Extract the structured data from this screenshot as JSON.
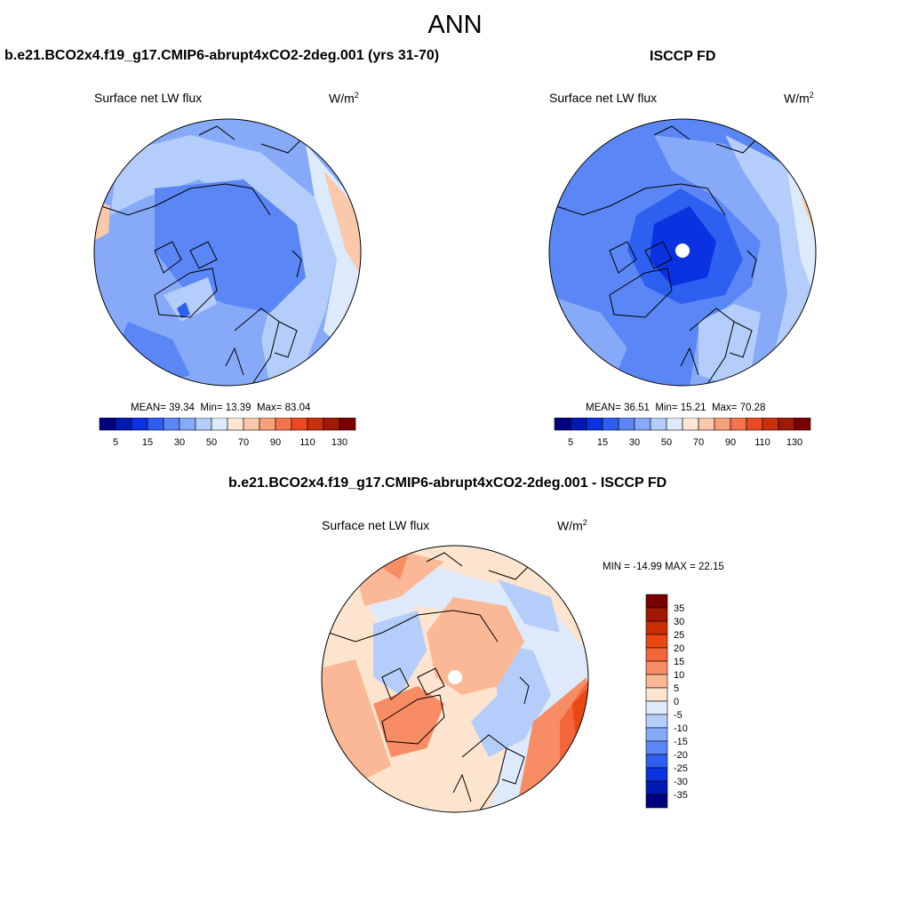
{
  "figure": {
    "title": "ANN",
    "panels": [
      {
        "id": "model",
        "title": "b.e21.BCO2x4.f19_g17.CMIP6-abrupt4xCO2-2deg.001 (yrs 31-70)",
        "variable": "Surface net LW flux",
        "units": "W/m",
        "units_sup": "2",
        "stats": {
          "mean_label": "MEAN=",
          "mean": "39.34",
          "min_label": "Min=",
          "min": "13.39",
          "max_label": "Max=",
          "max": "83.04"
        },
        "colorbar_labels": [
          "5",
          "15",
          "30",
          "50",
          "70",
          "90",
          "110",
          "130"
        ]
      },
      {
        "id": "obs",
        "title": "ISCCP FD",
        "variable": "Surface net LW flux",
        "units": "W/m",
        "units_sup": "2",
        "stats": {
          "mean_label": "MEAN=",
          "mean": "36.51",
          "min_label": "Min=",
          "min": "15.21",
          "max_label": "Max=",
          "max": "70.28"
        },
        "colorbar_labels": [
          "5",
          "15",
          "30",
          "50",
          "70",
          "90",
          "110",
          "130"
        ]
      },
      {
        "id": "diff",
        "title": "b.e21.BCO2x4.f19_g17.CMIP6-abrupt4xCO2-2deg.001 - ISCCP FD",
        "variable": "Surface net LW flux",
        "units": "W/m",
        "units_sup": "2",
        "stats_text": "MIN = -14.99 MAX =  22.15",
        "colorbar_labels": [
          "35",
          "30",
          "25",
          "20",
          "15",
          "10",
          "5",
          "0",
          "-5",
          "-10",
          "-15",
          "-20",
          "-25",
          "-30",
          "-35"
        ]
      }
    ],
    "colors": {
      "abs_scale": [
        "#00007f",
        "#0019b3",
        "#0a32e1",
        "#2d5ff0",
        "#5a87f5",
        "#87aaf8",
        "#b4cdfa",
        "#dceafc",
        "#fde6d6",
        "#fac8aa",
        "#f7a07a",
        "#f3734a",
        "#ea4a1e",
        "#c8300a",
        "#9e1a05",
        "#7a0000"
      ],
      "diff_scale": [
        "#7a0000",
        "#a21803",
        "#c82e00",
        "#ea4812",
        "#f5653a",
        "#f88c64",
        "#fab896",
        "#fde4ce",
        "#deeafc",
        "#b4cdfa",
        "#87aaf8",
        "#5a87f5",
        "#2d5ff0",
        "#0a32e1",
        "#0019b3",
        "#00007f"
      ],
      "missing": "#ffffff"
    }
  }
}
